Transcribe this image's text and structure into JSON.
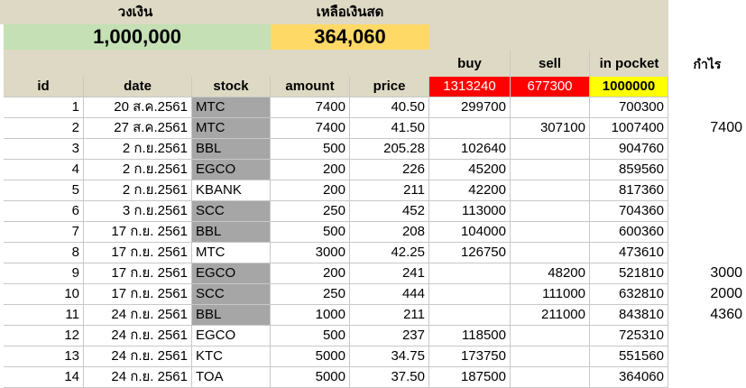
{
  "summary": {
    "capital_label": "วงเงิน",
    "capital_value": "1,000,000",
    "cash_label": "เหลือเงินสด",
    "cash_value": "364,060"
  },
  "totals": {
    "buy_label": "buy",
    "sell_label": "sell",
    "pocket_label": "in pocket",
    "buy_total": "1313240",
    "sell_total": "677300",
    "pocket_total": "1000000",
    "profit_label": "กำไร"
  },
  "columns": [
    "id",
    "date",
    "stock",
    "amount",
    "price"
  ],
  "rows": [
    {
      "id": "1",
      "date": "20 ส.ค.2561",
      "stock": "MTC",
      "amount": "7400",
      "price": "40.50",
      "buy": "299700",
      "sell": "",
      "pocket": "700300",
      "profit": "",
      "grey": true
    },
    {
      "id": "2",
      "date": "27 ส.ค.2561",
      "stock": "MTC",
      "amount": "7400",
      "price": "41.50",
      "buy": "",
      "sell": "307100",
      "pocket": "1007400",
      "profit": "7400",
      "grey": true
    },
    {
      "id": "3",
      "date": "2 ก.ย.2561",
      "stock": "BBL",
      "amount": "500",
      "price": "205.28",
      "buy": "102640",
      "sell": "",
      "pocket": "904760",
      "profit": "",
      "grey": true
    },
    {
      "id": "4",
      "date": "2 ก.ย.2561",
      "stock": "EGCO",
      "amount": "200",
      "price": "226",
      "buy": "45200",
      "sell": "",
      "pocket": "859560",
      "profit": "",
      "grey": true
    },
    {
      "id": "5",
      "date": "2 ก.ย.2561",
      "stock": "KBANK",
      "amount": "200",
      "price": "211",
      "buy": "42200",
      "sell": "",
      "pocket": "817360",
      "profit": "",
      "grey": false
    },
    {
      "id": "6",
      "date": "3 ก.ย.2561",
      "stock": "SCC",
      "amount": "250",
      "price": "452",
      "buy": "113000",
      "sell": "",
      "pocket": "704360",
      "profit": "",
      "grey": true
    },
    {
      "id": "7",
      "date": "17 ก.ย. 2561",
      "stock": "BBL",
      "amount": "500",
      "price": "208",
      "buy": "104000",
      "sell": "",
      "pocket": "600360",
      "profit": "",
      "grey": true
    },
    {
      "id": "8",
      "date": "17 ก.ย. 2561",
      "stock": "MTC",
      "amount": "3000",
      "price": "42.25",
      "buy": "126750",
      "sell": "",
      "pocket": "473610",
      "profit": "",
      "grey": false
    },
    {
      "id": "9",
      "date": "17 ก.ย. 2561",
      "stock": "EGCO",
      "amount": "200",
      "price": "241",
      "buy": "",
      "sell": "48200",
      "pocket": "521810",
      "profit": "3000",
      "grey": true
    },
    {
      "id": "10",
      "date": "17 ก.ย. 2561",
      "stock": "SCC",
      "amount": "250",
      "price": "444",
      "buy": "",
      "sell": "111000",
      "pocket": "632810",
      "profit": "2000",
      "grey": true
    },
    {
      "id": "11",
      "date": "24 ก.ย. 2561",
      "stock": "BBL",
      "amount": "1000",
      "price": "211",
      "buy": "",
      "sell": "211000",
      "pocket": "843810",
      "profit": "4360",
      "grey": true
    },
    {
      "id": "12",
      "date": "24 ก.ย. 2561",
      "stock": "EGCO",
      "amount": "500",
      "price": "237",
      "buy": "118500",
      "sell": "",
      "pocket": "725310",
      "profit": "",
      "grey": false
    },
    {
      "id": "13",
      "date": "24 ก.ย. 2561",
      "stock": "KTC",
      "amount": "5000",
      "price": "34.75",
      "buy": "173750",
      "sell": "",
      "pocket": "551560",
      "profit": "",
      "grey": false
    },
    {
      "id": "14",
      "date": "24 ก.ย. 2561",
      "stock": "TOA",
      "amount": "5000",
      "price": "37.50",
      "buy": "187500",
      "sell": "",
      "pocket": "364060",
      "profit": "",
      "grey": false
    }
  ],
  "colors": {
    "capital_bg": "#c4e0b4",
    "cash_bg": "#ffd966",
    "header_bg": "#ddd9c4",
    "buy_total_bg": "#ff0000",
    "sell_total_bg": "#ff0000",
    "pocket_total_bg": "#ffff00",
    "stock_grey": "#a6a6a6",
    "accent_green": "#21a366"
  }
}
